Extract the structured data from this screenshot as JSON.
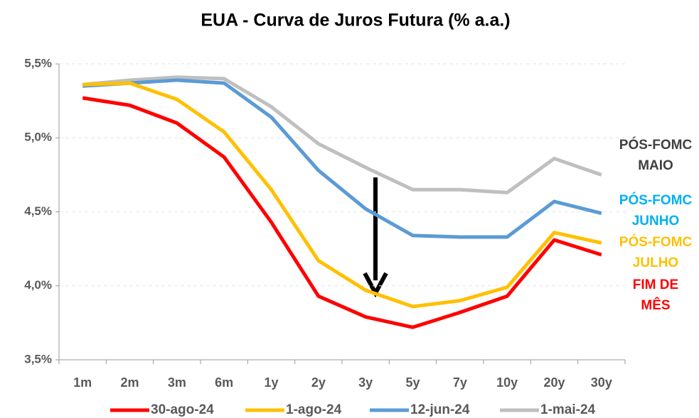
{
  "chart_data": {
    "type": "line",
    "title": "EUA - Curva de Juros Futura (% a.a.)",
    "categories": [
      "1m",
      "2m",
      "3m",
      "6m",
      "1y",
      "2y",
      "3y",
      "5y",
      "7y",
      "10y",
      "20y",
      "30y"
    ],
    "series": [
      {
        "name": "30-ago-24",
        "color": "#ff0000",
        "values": [
          5.27,
          5.22,
          5.1,
          4.87,
          4.43,
          3.93,
          3.79,
          3.72,
          3.82,
          3.93,
          4.31,
          4.21
        ]
      },
      {
        "name": "1-ago-24",
        "color": "#ffc000",
        "values": [
          5.36,
          5.37,
          5.26,
          5.04,
          4.65,
          4.17,
          3.97,
          3.86,
          3.9,
          3.99,
          4.36,
          4.29
        ]
      },
      {
        "name": "12-jun-24",
        "color": "#5b9bd5",
        "values": [
          5.35,
          5.37,
          5.39,
          5.37,
          5.14,
          4.78,
          4.52,
          4.34,
          4.33,
          4.33,
          4.57,
          4.49
        ]
      },
      {
        "name": "1-mai-24",
        "color": "#bfbfbf",
        "values": [
          5.36,
          5.39,
          5.41,
          5.4,
          5.21,
          4.96,
          4.8,
          4.65,
          4.65,
          4.63,
          4.86,
          4.75
        ]
      }
    ],
    "ylim": [
      3.5,
      5.5
    ],
    "yticks": [
      {
        "value": 3.5,
        "label": "3,5%"
      },
      {
        "value": 4.0,
        "label": "4,0%"
      },
      {
        "value": 4.5,
        "label": "4,5%"
      },
      {
        "value": 5.0,
        "label": "5,0%"
      },
      {
        "value": 5.5,
        "label": "5,5%"
      }
    ],
    "grid": true,
    "legend": "bottom",
    "annotations": [
      {
        "lines": [
          "PÓS-FOMC",
          "MAIO"
        ],
        "color": "#404040"
      },
      {
        "lines": [
          "PÓS-FOMC",
          "JUNHO"
        ],
        "color": "#00b0f0"
      },
      {
        "lines": [
          "PÓS-FOMC",
          "JULHO"
        ],
        "color": "#ffc000"
      },
      {
        "lines": [
          "FIM DE",
          "MÊS"
        ],
        "color": "#ff0000"
      }
    ]
  }
}
